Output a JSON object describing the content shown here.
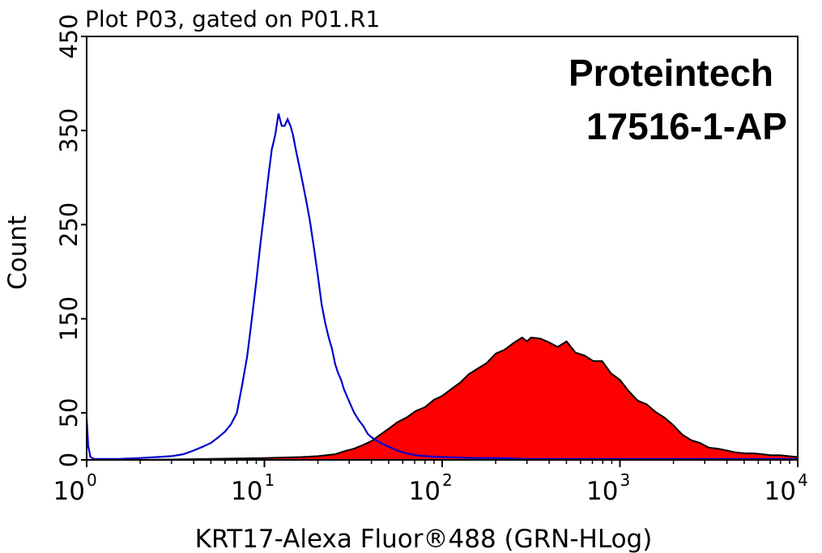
{
  "chart_data": {
    "type": "area",
    "title": "Plot P03, gated on P01.R1",
    "xlabel": "KRT17-Alexa Fluor®488 (GRN-HLog)",
    "ylabel": "Count",
    "xscale": "log",
    "xlim": [
      1,
      10000
    ],
    "ylim": [
      0,
      450
    ],
    "yticks": [
      0,
      50,
      150,
      250,
      350,
      450
    ],
    "xticks": [
      {
        "base": "10",
        "exp": "0",
        "value": 1
      },
      {
        "base": "10",
        "exp": "1",
        "value": 10
      },
      {
        "base": "10",
        "exp": "2",
        "value": 100
      },
      {
        "base": "10",
        "exp": "3",
        "value": 1000
      },
      {
        "base": "10",
        "exp": "4",
        "value": 10000
      }
    ],
    "annotations": [
      "Proteintech",
      "17516-1-AP"
    ],
    "grid": false,
    "series": [
      {
        "color": "#ff0000",
        "edge_color": "#000000",
        "style": "filled",
        "x": [
          1,
          2,
          5,
          10,
          16,
          20,
          25,
          28,
          32,
          36,
          40,
          45,
          50,
          56,
          63,
          71,
          80,
          90,
          100,
          112,
          126,
          141,
          158,
          178,
          200,
          224,
          251,
          282,
          300,
          316,
          355,
          398,
          447,
          501,
          562,
          631,
          708,
          794,
          891,
          1000,
          1122,
          1259,
          1413,
          1585,
          1778,
          1995,
          2239,
          2512,
          2818,
          3162,
          3548,
          3981,
          4467,
          5012,
          5623,
          6310,
          7079,
          7943,
          8913,
          10000
        ],
        "y": [
          0,
          0,
          1,
          2,
          3,
          4,
          6,
          9,
          12,
          16,
          20,
          27,
          33,
          40,
          45,
          52,
          56,
          64,
          68,
          75,
          82,
          91,
          97,
          103,
          113,
          117,
          124,
          130,
          126,
          130,
          129,
          125,
          120,
          126,
          114,
          111,
          105,
          105,
          92,
          85,
          73,
          63,
          59,
          51,
          45,
          37,
          27,
          21,
          18,
          13,
          12,
          10,
          8,
          7,
          7,
          6,
          5,
          5,
          4,
          3
        ]
      },
      {
        "color": "#0000cc",
        "style": "line",
        "x": [
          1,
          1.02,
          1.05,
          1.1,
          1.5,
          2,
          2.5,
          3,
          3.5,
          4,
          4.5,
          5,
          5.5,
          6,
          6.5,
          7,
          7.5,
          8,
          8.5,
          9,
          9.5,
          10,
          10.5,
          11,
          11.5,
          12,
          12.5,
          13,
          13.5,
          14,
          14.5,
          15,
          16,
          17,
          18,
          19,
          20,
          21,
          22,
          23,
          24,
          25,
          26,
          27,
          28,
          30,
          32,
          34,
          36,
          38,
          40,
          45,
          50,
          56,
          63,
          71,
          80,
          100,
          150,
          200,
          300,
          500,
          1000,
          3000,
          10000
        ],
        "y": [
          45,
          15,
          3,
          1,
          1,
          2,
          3,
          4,
          6,
          10,
          14,
          18,
          24,
          30,
          38,
          50,
          80,
          110,
          150,
          190,
          230,
          265,
          300,
          330,
          345,
          368,
          355,
          355,
          362,
          355,
          345,
          330,
          305,
          280,
          255,
          225,
          195,
          165,
          145,
          130,
          118,
          102,
          92,
          85,
          75,
          62,
          50,
          42,
          36,
          28,
          24,
          18,
          14,
          10,
          7,
          5,
          4,
          3,
          2,
          2,
          1,
          1,
          1,
          1,
          1
        ]
      }
    ]
  }
}
